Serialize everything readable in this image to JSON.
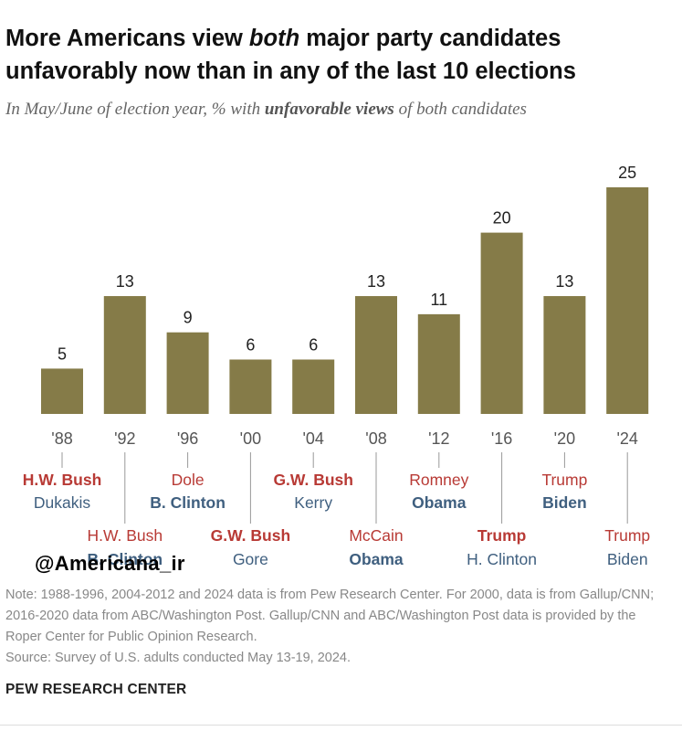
{
  "title_part1": "More Americans view ",
  "title_em": "both",
  "title_part2": " major party candidates unfavorably now than in any of the last 10 elections",
  "subtitle_part1": "In May/June of election year, % with ",
  "subtitle_bold": "unfavorable views",
  "subtitle_part2": " of both candidates",
  "colors": {
    "bar": "#857B48",
    "rep": "#B83A35",
    "dem": "#3F5F7F",
    "axis": "#999999"
  },
  "chart_data": {
    "type": "bar",
    "categories": [
      "'88",
      "'92",
      "'96",
      "'00",
      "'04",
      "'08",
      "'12",
      "'16",
      "'20",
      "'24"
    ],
    "values": [
      5,
      13,
      9,
      6,
      6,
      13,
      11,
      20,
      13,
      25
    ],
    "ylim": [
      0,
      25
    ],
    "candidates": [
      {
        "rep": "H.W. Bush",
        "dem": "Dukakis",
        "winner": "rep",
        "first": "rep"
      },
      {
        "rep": "H.W. Bush",
        "dem": "B. Clinton",
        "winner": "dem",
        "first": "rep"
      },
      {
        "rep": "Dole",
        "dem": "B. Clinton",
        "winner": "dem",
        "first": "rep"
      },
      {
        "rep": "G.W. Bush",
        "dem": "Gore",
        "winner": "rep",
        "first": "rep"
      },
      {
        "rep": "G.W. Bush",
        "dem": "Kerry",
        "winner": "rep",
        "first": "rep"
      },
      {
        "rep": "McCain",
        "dem": "Obama",
        "winner": "dem",
        "first": "rep"
      },
      {
        "rep": "Romney",
        "dem": "Obama",
        "winner": "dem",
        "first": "rep"
      },
      {
        "rep": "Trump",
        "dem": "H. Clinton",
        "winner": "rep",
        "first": "rep"
      },
      {
        "rep": "Trump",
        "dem": "Biden",
        "winner": "dem",
        "first": "rep"
      },
      {
        "rep": "Trump",
        "dem": "Biden",
        "winner": "none",
        "first": "rep"
      }
    ]
  },
  "note": "Note: 1988-1996, 2004-2012 and 2024 data is from Pew Research Center. For 2000, data is from Gallup/CNN; 2016-2020 data from ABC/Washington Post. Gallup/CNN and ABC/Washington Post data is provided by the Roper Center for Public Opinion Research.",
  "source": "Source: Survey of U.S. adults conducted May 13-19, 2024.",
  "brand": "PEW RESEARCH CENTER",
  "watermark": "@Americana_ir"
}
